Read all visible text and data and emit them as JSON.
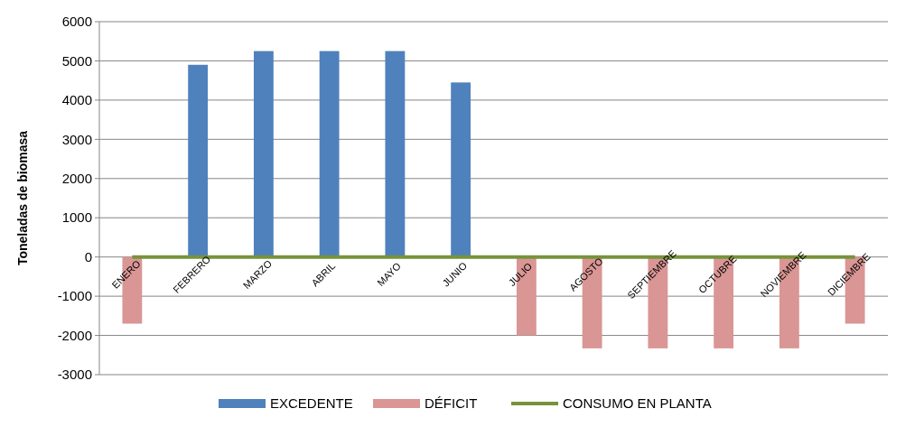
{
  "chart_data": {
    "type": "bar",
    "ylabel": "Toneladas de biomasa",
    "categories": [
      "ENERO",
      "FEBRERO",
      "MARZO",
      "ABRIL",
      "MAYO",
      "JUNIO",
      "JULIO",
      "AGOSTO",
      "SEPTIEMBRE",
      "OCTUBRE",
      "NOVIEMBRE",
      "DICIEMBRE"
    ],
    "series": [
      {
        "name": "EXCEDENTE",
        "color": "#4f81bd",
        "values": [
          null,
          4900,
          5250,
          5250,
          5250,
          4450,
          null,
          null,
          null,
          null,
          null,
          null
        ]
      },
      {
        "name": "DÉFICIT",
        "color": "#d99694",
        "values": [
          -1700,
          null,
          null,
          null,
          null,
          null,
          -2000,
          -2330,
          -2330,
          -2330,
          -2330,
          -1700
        ]
      },
      {
        "name": "CONSUMO EN PLANTA",
        "type": "line",
        "color": "#77933c",
        "values": [
          0,
          0,
          0,
          0,
          0,
          0,
          0,
          0,
          0,
          0,
          0,
          0
        ]
      }
    ],
    "ylim": [
      -3000,
      6000
    ],
    "yticks": [
      -3000,
      -2000,
      -1000,
      0,
      1000,
      2000,
      3000,
      4000,
      5000,
      6000
    ],
    "grid": "y",
    "legend": "bottom"
  }
}
